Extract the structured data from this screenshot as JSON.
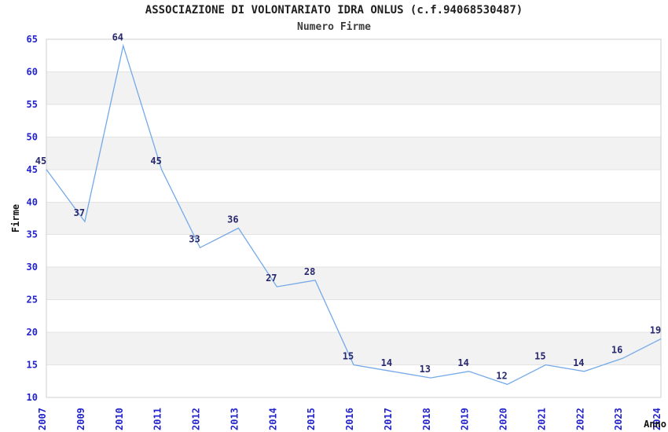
{
  "header": {
    "title": "ASSOCIAZIONE DI VOLONTARIATO IDRA ONLUS (c.f.94068530487)",
    "subtitle": "Numero Firme"
  },
  "chart_data": {
    "type": "line",
    "title": "ASSOCIAZIONE DI VOLONTARIATO IDRA ONLUS (c.f.94068530487)",
    "subtitle": "Numero Firme",
    "xlabel": "Anno",
    "ylabel": "Firme",
    "categories": [
      "2007",
      "2009",
      "2010",
      "2011",
      "2012",
      "2013",
      "2014",
      "2015",
      "2016",
      "2017",
      "2018",
      "2019",
      "2020",
      "2021",
      "2022",
      "2023",
      "2024"
    ],
    "series": [
      {
        "name": "Numero Firme",
        "values": [
          45,
          37,
          64,
          45,
          33,
          36,
          27,
          28,
          15,
          14,
          13,
          14,
          12,
          15,
          14,
          16,
          19
        ]
      }
    ],
    "ylim": [
      10,
      65
    ],
    "ytick_step": 5,
    "yticks": [
      10,
      15,
      20,
      25,
      30,
      35,
      40,
      45,
      50,
      55,
      60,
      65
    ],
    "point_labels_visible": true,
    "legend_position": "none",
    "grid": "horizontal-bands",
    "colors": {
      "line": "#74a9e8",
      "tick_label": "#2323cc",
      "point_label": "#28286e",
      "band": "#f2f2f2",
      "gridline": "#e3e3e3",
      "plot_border": "#cfcfcf",
      "title": "#1f1f1f",
      "subtitle": "#3d3d3d",
      "axis_name": "#111111",
      "background": "#ffffff"
    }
  }
}
